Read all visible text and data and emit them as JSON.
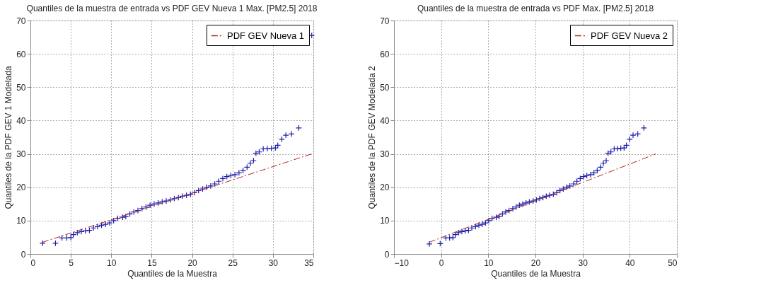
{
  "chart_data": [
    {
      "type": "scatter",
      "title": "Quantiles de la muestra de entrada vs PDF GEV Nueva 1 Max. [PM2.5] 2018",
      "xlabel": "Quantiles de la Muestra",
      "ylabel": "Quantiles de la PDF GEV 1 Modelada",
      "xlim": [
        0,
        35
      ],
      "xticks": [
        0,
        5,
        10,
        15,
        20,
        25,
        30,
        35
      ],
      "ylim": [
        0,
        70
      ],
      "yticks": [
        0,
        10,
        20,
        30,
        40,
        50,
        60,
        70
      ],
      "grid": true,
      "legend": "top right",
      "series": [
        {
          "color": "#1c1ca8",
          "marker": "cross",
          "x": [
            1.5,
            3.1,
            3.9,
            4.5,
            5.0,
            5.3,
            5.8,
            6.3,
            6.8,
            7.3,
            7.8,
            8.3,
            8.8,
            9.3,
            9.8,
            10.3,
            10.8,
            11.4,
            11.8,
            12.3,
            12.8,
            13.3,
            13.8,
            14.3,
            14.8,
            15.3,
            15.8,
            16.3,
            16.8,
            17.3,
            17.8,
            18.3,
            18.8,
            19.3,
            19.8,
            20.3,
            20.8,
            21.3,
            21.8,
            22.3,
            22.8,
            23.3,
            23.8,
            24.3,
            24.8,
            25.3,
            25.8,
            26.3,
            26.8,
            27.2,
            27.6,
            27.9,
            28.3,
            28.8,
            29.3,
            29.8,
            30.3,
            30.6,
            31.1,
            31.6,
            32.3,
            33.2,
            34.8
          ],
          "values": [
            3.2,
            3.2,
            4.8,
            4.8,
            4.9,
            5.8,
            6.4,
            6.7,
            6.9,
            7.1,
            7.8,
            8.2,
            8.6,
            8.9,
            9.3,
            10.0,
            10.7,
            11.0,
            11.2,
            12.0,
            12.6,
            13.0,
            13.6,
            14.1,
            14.6,
            15.0,
            15.3,
            15.6,
            15.9,
            16.2,
            16.6,
            16.9,
            17.3,
            17.6,
            17.9,
            18.4,
            19.0,
            19.5,
            20.0,
            20.4,
            21.0,
            21.8,
            22.6,
            23.2,
            23.5,
            23.8,
            24.3,
            25.0,
            26.0,
            27.2,
            28.0,
            30.2,
            30.6,
            31.5,
            31.6,
            31.7,
            31.8,
            32.6,
            34.4,
            35.6,
            36.0,
            37.8,
            65.5
          ]
        },
        {
          "type": "line",
          "name": "PDF GEV Nueva 1",
          "color": "#b22222",
          "line_style": "dashed",
          "x": [
            1.5,
            34.8
          ],
          "values": [
            3.5,
            30
          ]
        }
      ]
    },
    {
      "type": "scatter",
      "title": "Quantiles de la muestra de entrada vs PDF Max. [PM2.5] 2018",
      "xlabel": "Quantiles de la Muestra",
      "ylabel": "Quantiles de la PDF GEV Modelada 2",
      "xlim": [
        -10,
        50
      ],
      "xticks": [
        -10,
        0,
        10,
        20,
        30,
        40,
        50
      ],
      "ylim": [
        0,
        70
      ],
      "yticks": [
        0,
        10,
        20,
        30,
        40,
        50,
        60,
        70
      ],
      "grid": true,
      "legend": "top right",
      "series": [
        {
          "color": "#1c1ca8",
          "marker": "cross",
          "x": [
            -2.5,
            -0.2,
            1.0,
            1.8,
            2.5,
            3.0,
            3.7,
            4.4,
            5.1,
            5.8,
            6.5,
            7.3,
            8.0,
            8.7,
            9.4,
            10.1,
            10.8,
            11.7,
            12.3,
            13.0,
            13.7,
            14.4,
            15.2,
            15.9,
            16.6,
            17.3,
            18.0,
            18.7,
            19.5,
            20.2,
            20.9,
            21.6,
            22.3,
            23.0,
            23.8,
            24.5,
            25.2,
            25.9,
            26.6,
            27.3,
            28.1,
            28.8,
            29.5,
            30.2,
            30.9,
            31.7,
            32.4,
            33.1,
            33.8,
            34.4,
            35.0,
            35.4,
            36.0,
            36.7,
            37.4,
            38.1,
            38.8,
            39.3,
            40.0,
            40.7,
            41.7,
            43.0
          ],
          "values": [
            3.0,
            3.1,
            4.8,
            4.8,
            4.9,
            5.8,
            6.4,
            6.7,
            6.9,
            7.1,
            7.8,
            8.2,
            8.6,
            8.9,
            9.3,
            10.0,
            10.7,
            11.0,
            11.2,
            12.0,
            12.6,
            13.0,
            13.6,
            14.1,
            14.6,
            15.0,
            15.3,
            15.6,
            15.9,
            16.2,
            16.6,
            16.9,
            17.3,
            17.6,
            17.9,
            18.4,
            19.0,
            19.5,
            20.0,
            20.4,
            21.0,
            21.8,
            22.6,
            23.2,
            23.5,
            23.8,
            24.3,
            25.0,
            26.0,
            27.2,
            28.0,
            30.2,
            30.6,
            31.5,
            31.6,
            31.7,
            31.8,
            32.6,
            34.4,
            35.6,
            36.0,
            37.8
          ]
        },
        {
          "type": "line",
          "name": "PDF GEV Nueva 2",
          "color": "#b22222",
          "line_style": "dashed",
          "x": [
            -2.5,
            45.5
          ],
          "values": [
            3.5,
            30
          ]
        }
      ]
    }
  ]
}
